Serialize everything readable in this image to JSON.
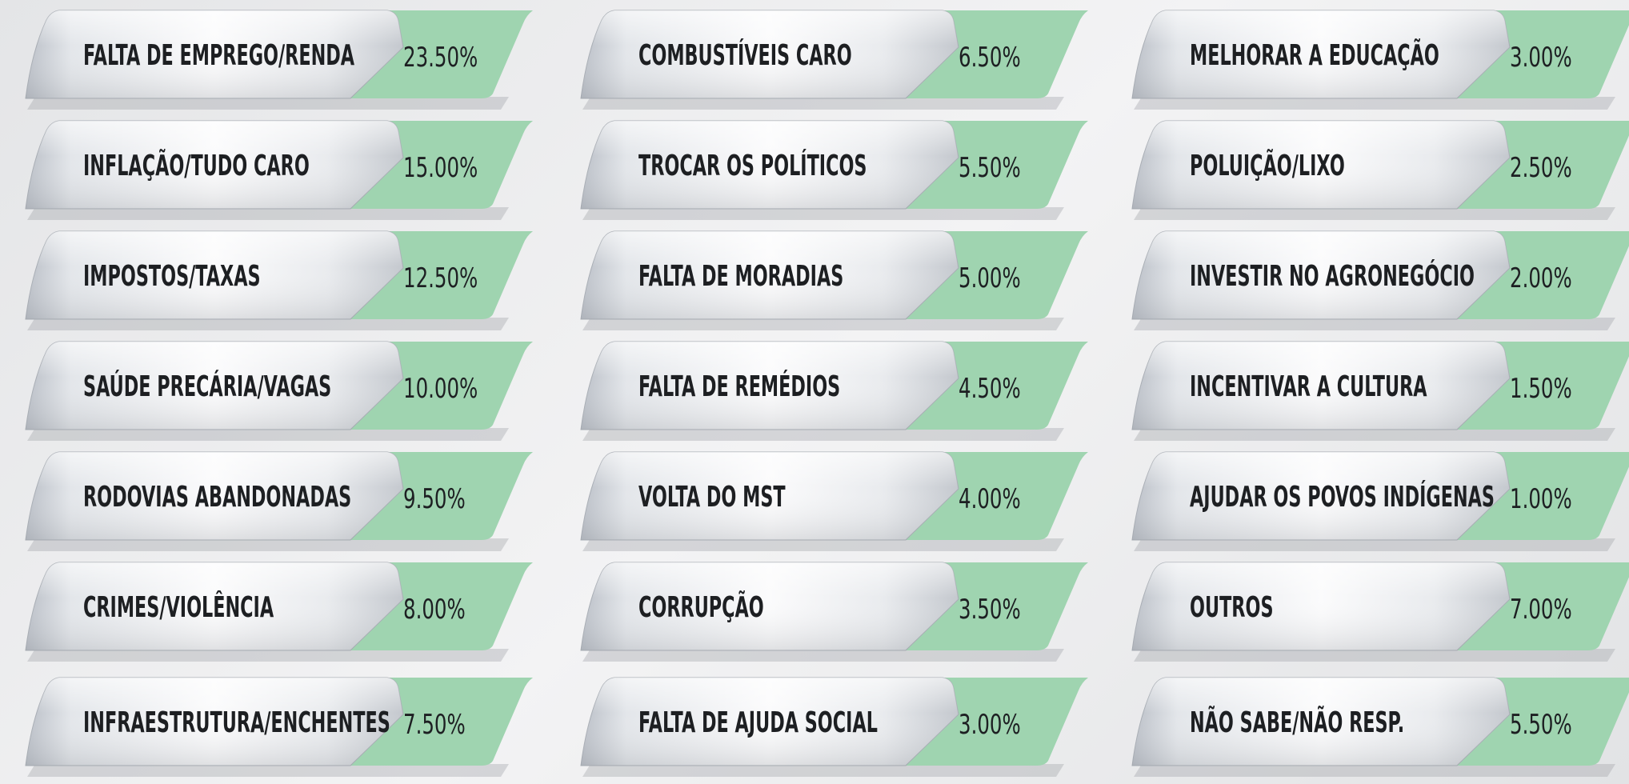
{
  "items": [
    {
      "label": "FALTA DE EMPREGO/RENDA",
      "value": "23.50%"
    },
    {
      "label": "INFLAÇÃO/TUDO CARO",
      "value": "15.00%"
    },
    {
      "label": "IMPOSTOS/TAXAS",
      "value": "12.50%"
    },
    {
      "label": "SAÚDE PRECÁRIA/VAGAS",
      "value": "10.00%"
    },
    {
      "label": "RODOVIAS ABANDONADAS",
      "value": "9.50%"
    },
    {
      "label": "CRIMES/VIOLÊNCIA",
      "value": "8.00%"
    },
    {
      "label": "INFRAESTRUTURA/ENCHENTES",
      "value": "7.50%"
    },
    {
      "label": "COMBUSTÍVEIS CARO",
      "value": "6.50%"
    },
    {
      "label": "TROCAR OS POLÍTICOS",
      "value": "5.50%"
    },
    {
      "label": "FALTA DE MORADIAS",
      "value": "5.00%"
    },
    {
      "label": "FALTA DE REMÉDIOS",
      "value": "4.50%"
    },
    {
      "label": "VOLTA DO MST",
      "value": "4.00%"
    },
    {
      "label": "CORRUPÇÃO",
      "value": "3.50%"
    },
    {
      "label": "FALTA DE AJUDA SOCIAL",
      "value": "3.00%"
    },
    {
      "label": "MELHORAR A EDUCAÇÃO",
      "value": "3.00%"
    },
    {
      "label": "POLUIÇÃO/LIXO",
      "value": "2.50%"
    },
    {
      "label": "INVESTIR NO AGRONEGÓCIO",
      "value": "2.00%"
    },
    {
      "label": "INCENTIVAR A CULTURA",
      "value": "1.50%"
    },
    {
      "label": "AJUDAR OS POVOS INDÍGENAS",
      "value": "1.00%"
    },
    {
      "label": "OUTROS",
      "value": "7.00%"
    },
    {
      "label": "NÃO SABE/NÃO RESP.",
      "value": "5.50%"
    }
  ]
}
